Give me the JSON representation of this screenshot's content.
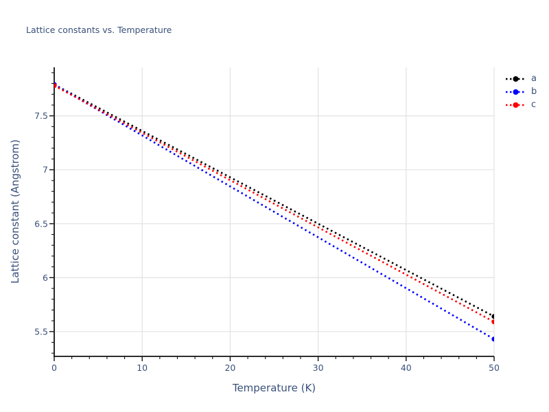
{
  "figure": {
    "title": "Lattice constants vs. Temperature",
    "xlabel": "Temperature (K)",
    "ylabel": "Lattice constant (Angstrom)"
  },
  "colors": {
    "background": "#ffffff",
    "text": "#38507a",
    "grid": "#e4e4e4",
    "axis": "#111111",
    "series_a": "#000000",
    "series_b": "#0000ff",
    "series_c": "#ff0000"
  },
  "legend": {
    "entries": [
      "a",
      "b",
      "c"
    ],
    "position": "upper right",
    "frame": false
  },
  "chart_data": {
    "type": "line",
    "title": "Lattice constants vs. Temperature",
    "xlabel": "Temperature (K)",
    "ylabel": "Lattice constant (Angstrom)",
    "xlim": [
      0,
      50
    ],
    "ylim": [
      5.27,
      7.95
    ],
    "xticks": [
      0,
      10,
      20,
      30,
      40,
      50
    ],
    "yticks": [
      5.5,
      6,
      6.5,
      7,
      7.5
    ],
    "minor_x_step": 2,
    "minor_y_step": 0.1,
    "grid": true,
    "line_style": "dotted",
    "marker": "circle",
    "legend_position": "upper right",
    "x": [
      0,
      50
    ],
    "series": [
      {
        "name": "a",
        "color": "#000000",
        "values": [
          7.79,
          5.64
        ]
      },
      {
        "name": "b",
        "color": "#0000ff",
        "values": [
          7.79,
          5.43
        ]
      },
      {
        "name": "c",
        "color": "#ff0000",
        "values": [
          7.78,
          5.59
        ]
      }
    ]
  }
}
